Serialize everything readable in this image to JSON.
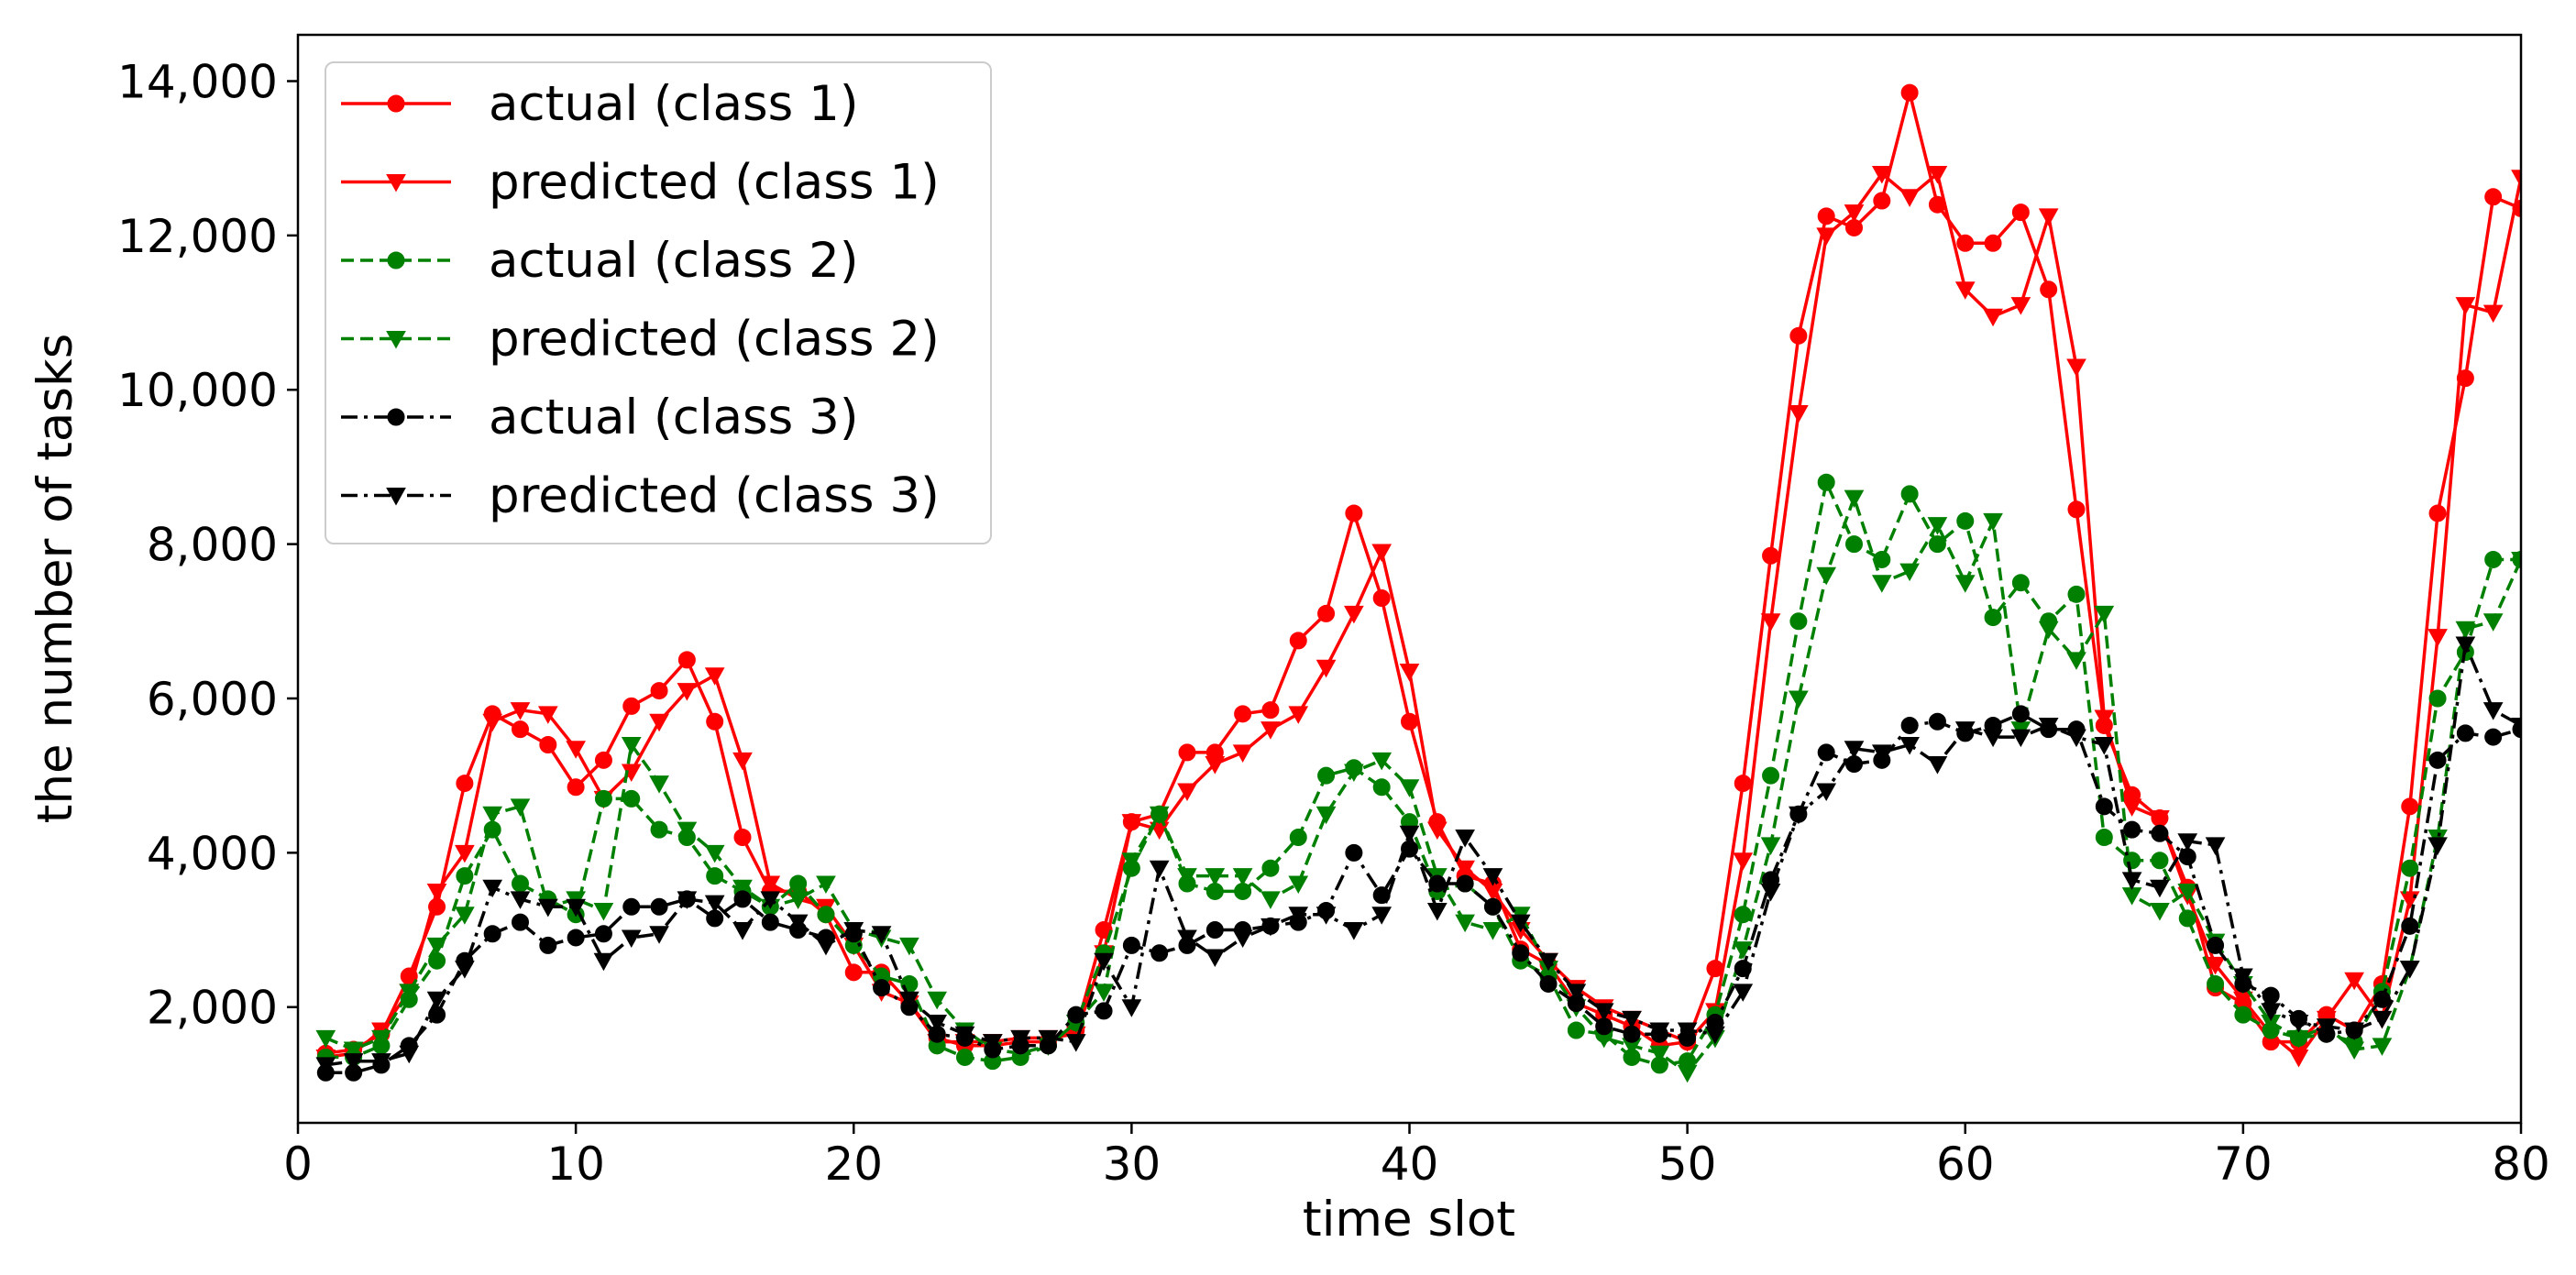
{
  "chart_data": {
    "type": "line",
    "xlabel": "time slot",
    "ylabel": "the number of tasks",
    "xlim": [
      0,
      80
    ],
    "ylim": [
      500,
      14600
    ],
    "x_ticks": [
      0,
      10,
      20,
      30,
      40,
      50,
      60,
      70,
      80
    ],
    "x_tick_labels": [
      "0",
      "10",
      "20",
      "30",
      "40",
      "50",
      "60",
      "70",
      "80"
    ],
    "y_ticks": [
      2000,
      4000,
      6000,
      8000,
      10000,
      12000,
      14000
    ],
    "y_tick_labels": [
      "2,000",
      "4,000",
      "6,000",
      "8,000",
      "10,000",
      "12,000",
      "14,000"
    ],
    "grid": false,
    "legend_position": "top-left",
    "x": [
      1,
      2,
      3,
      4,
      5,
      6,
      7,
      8,
      9,
      10,
      11,
      12,
      13,
      14,
      15,
      16,
      17,
      18,
      19,
      20,
      21,
      22,
      23,
      24,
      25,
      26,
      27,
      28,
      29,
      30,
      31,
      32,
      33,
      34,
      35,
      36,
      37,
      38,
      39,
      40,
      41,
      42,
      43,
      44,
      45,
      46,
      47,
      48,
      49,
      50,
      51,
      52,
      53,
      54,
      55,
      56,
      57,
      58,
      59,
      60,
      61,
      62,
      63,
      64,
      65,
      66,
      67,
      68,
      69,
      70,
      71,
      72,
      73,
      74,
      75,
      76,
      77,
      78,
      79,
      80
    ],
    "series": [
      {
        "name": "actual (class 1)",
        "color": "#ff0000",
        "dash": "solid",
        "marker": "circle",
        "values": [
          1400,
          1450,
          1650,
          2400,
          3300,
          4900,
          5800,
          5600,
          5400,
          4850,
          5200,
          5900,
          6100,
          6500,
          5700,
          4200,
          3500,
          3500,
          3200,
          2450,
          2450,
          2050,
          1600,
          1500,
          1500,
          1550,
          1550,
          1700,
          3000,
          4400,
          4500,
          5300,
          5300,
          5800,
          5850,
          6750,
          7100,
          8400,
          7300,
          5700,
          4400,
          3700,
          3600,
          2750,
          2550,
          2050,
          1900,
          1750,
          1500,
          1550,
          2500,
          4900,
          7850,
          10700,
          12250,
          12100,
          12450,
          13850,
          12400,
          11900,
          11900,
          12300,
          11300,
          8450,
          5650,
          4750,
          4450,
          3550,
          2250,
          2050,
          1550,
          1550,
          1900,
          1700,
          2300,
          4600,
          8400,
          10150,
          12500,
          12350
        ]
      },
      {
        "name": "predicted (class 1)",
        "color": "#ff0000",
        "dash": "solid",
        "marker": "triangle",
        "values": [
          1350,
          1400,
          1700,
          2200,
          3500,
          4000,
          5700,
          5850,
          5800,
          5350,
          4700,
          5050,
          5700,
          6100,
          6300,
          5200,
          3600,
          3400,
          3300,
          2800,
          2200,
          2050,
          1550,
          1550,
          1550,
          1600,
          1600,
          1650,
          2700,
          4400,
          4300,
          4800,
          5150,
          5300,
          5600,
          5800,
          6400,
          7100,
          7900,
          6350,
          4300,
          3800,
          3500,
          3000,
          2600,
          2250,
          2000,
          1850,
          1700,
          1550,
          1950,
          3900,
          7000,
          9700,
          12000,
          12300,
          12800,
          12500,
          12800,
          11300,
          10950,
          11100,
          12250,
          10300,
          5750,
          4600,
          4450,
          3450,
          2550,
          2100,
          1650,
          1350,
          1850,
          2350,
          1850,
          3400,
          6800,
          11100,
          11000,
          12750
        ]
      },
      {
        "name": "actual (class 2)",
        "color": "#008000",
        "dash": "dashed",
        "marker": "circle",
        "values": [
          1350,
          1350,
          1500,
          2100,
          2600,
          3700,
          4300,
          3600,
          3400,
          3200,
          4700,
          4700,
          4300,
          4200,
          3700,
          3500,
          3300,
          3600,
          3200,
          2800,
          2400,
          2300,
          1500,
          1350,
          1300,
          1350,
          1500,
          1800,
          2700,
          3800,
          4500,
          3600,
          3500,
          3500,
          3800,
          4200,
          5000,
          5100,
          4850,
          4400,
          3500,
          3600,
          3300,
          2600,
          2400,
          1700,
          1650,
          1350,
          1250,
          1300,
          1900,
          3200,
          5000,
          7000,
          8800,
          8000,
          7800,
          8650,
          8000,
          8300,
          7050,
          7500,
          7000,
          7350,
          4200,
          3900,
          3900,
          3150,
          2300,
          1900,
          1700,
          1600,
          1650,
          1550,
          2200,
          3800,
          6000,
          6600,
          7800,
          7800
        ]
      },
      {
        "name": "predicted (class 2)",
        "color": "#008000",
        "dash": "dashed",
        "marker": "triangle",
        "values": [
          1600,
          1450,
          1600,
          2200,
          2800,
          3200,
          4500,
          4600,
          3300,
          3400,
          3250,
          5400,
          4900,
          4300,
          4000,
          3550,
          3300,
          3400,
          3600,
          3000,
          2900,
          2800,
          2100,
          1700,
          1450,
          1400,
          1500,
          1800,
          2200,
          3900,
          4500,
          3700,
          3700,
          3700,
          3400,
          3600,
          4500,
          5050,
          5200,
          4850,
          3700,
          3100,
          3000,
          3200,
          2500,
          2000,
          1600,
          1500,
          1400,
          1150,
          1600,
          2750,
          4100,
          6000,
          7600,
          8600,
          7500,
          7650,
          8250,
          7500,
          8300,
          5600,
          6900,
          6500,
          7100,
          3450,
          3250,
          3500,
          2850,
          2300,
          1800,
          1600,
          1750,
          1450,
          1500,
          2500,
          4200,
          6900,
          7000,
          7800
        ]
      },
      {
        "name": "actual (class 3)",
        "color": "#000000",
        "dash": "dashdot",
        "marker": "circle",
        "values": [
          1150,
          1150,
          1250,
          1500,
          1900,
          2600,
          2950,
          3100,
          2800,
          2900,
          2950,
          3300,
          3300,
          3400,
          3150,
          3400,
          3100,
          3000,
          2900,
          2950,
          2250,
          2000,
          1650,
          1600,
          1450,
          1500,
          1500,
          1900,
          1950,
          2800,
          2700,
          2800,
          3000,
          3000,
          3050,
          3100,
          3250,
          4000,
          3450,
          4050,
          3600,
          3600,
          3300,
          2700,
          2300,
          2050,
          1750,
          1650,
          1650,
          1600,
          1800,
          2500,
          3650,
          4500,
          5300,
          5150,
          5200,
          5650,
          5700,
          5550,
          5650,
          5800,
          5600,
          5600,
          4600,
          4300,
          4250,
          3950,
          2800,
          2300,
          2150,
          1850,
          1650,
          1700,
          2100,
          3050,
          5200,
          5550,
          5500,
          5600
        ]
      },
      {
        "name": "predicted (class 3)",
        "color": "#000000",
        "dash": "dashdot",
        "marker": "triangle",
        "values": [
          1250,
          1300,
          1300,
          1400,
          2100,
          2500,
          3550,
          3400,
          3300,
          3300,
          2600,
          2900,
          2950,
          3400,
          3350,
          3000,
          3400,
          3100,
          2800,
          3000,
          2950,
          2100,
          1800,
          1650,
          1550,
          1600,
          1600,
          1550,
          2600,
          2000,
          3800,
          2900,
          2650,
          2900,
          3050,
          3200,
          3200,
          3000,
          3200,
          4250,
          3250,
          4200,
          3700,
          3100,
          2600,
          2200,
          1950,
          1850,
          1700,
          1700,
          1650,
          2200,
          3500,
          4500,
          4800,
          5350,
          5300,
          5400,
          5150,
          5600,
          5500,
          5500,
          5650,
          5500,
          5400,
          3650,
          3550,
          4150,
          4100,
          2400,
          1950,
          1800,
          1750,
          1700,
          1850,
          2500,
          4100,
          6700,
          5850,
          5650
        ]
      }
    ]
  }
}
